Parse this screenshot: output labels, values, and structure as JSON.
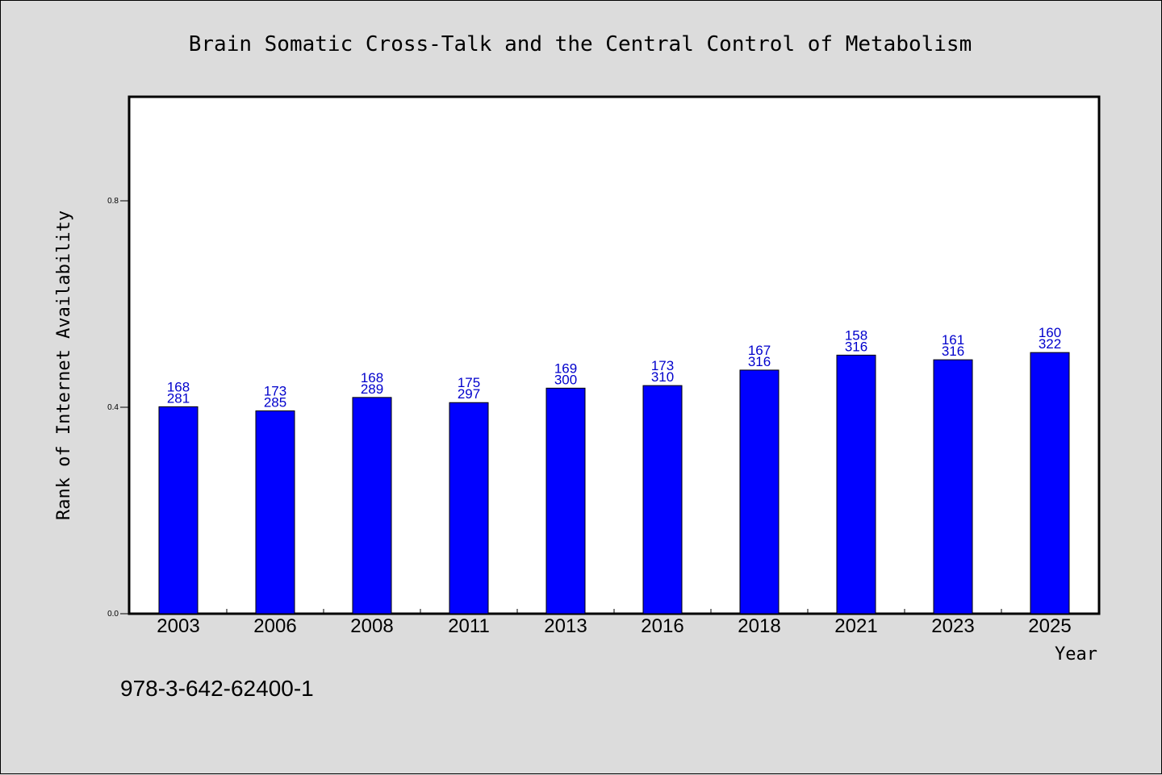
{
  "footer_text": "978-3-642-62400-1",
  "chart_data": {
    "type": "bar",
    "title": "Brain Somatic Cross-Talk and the Central Control of Metabolism",
    "xlabel": "Year",
    "ylabel": "Rank of Internet Availability",
    "categories": [
      "2003",
      "2006",
      "2008",
      "2011",
      "2013",
      "2016",
      "2018",
      "2021",
      "2023",
      "2025"
    ],
    "series": [
      {
        "values": [
          0.401,
          0.393,
          0.419,
          0.409,
          0.437,
          0.442,
          0.472,
          0.501,
          0.492,
          0.506
        ],
        "color": "#0000ff",
        "label_top": [
          "168",
          "173",
          "168",
          "175",
          "169",
          "173",
          "167",
          "158",
          "161",
          "160"
        ],
        "label_bottom": [
          "281",
          "285",
          "289",
          "297",
          "300",
          "310",
          "316",
          "316",
          "316",
          "322"
        ]
      }
    ],
    "ylim": [
      0,
      1.0
    ],
    "yticks": [
      0.0,
      0.4,
      0.8
    ],
    "ytick_labels": [
      "0.0",
      "0.4",
      "0.8"
    ],
    "grid": false,
    "label_color": "#0000cc"
  }
}
